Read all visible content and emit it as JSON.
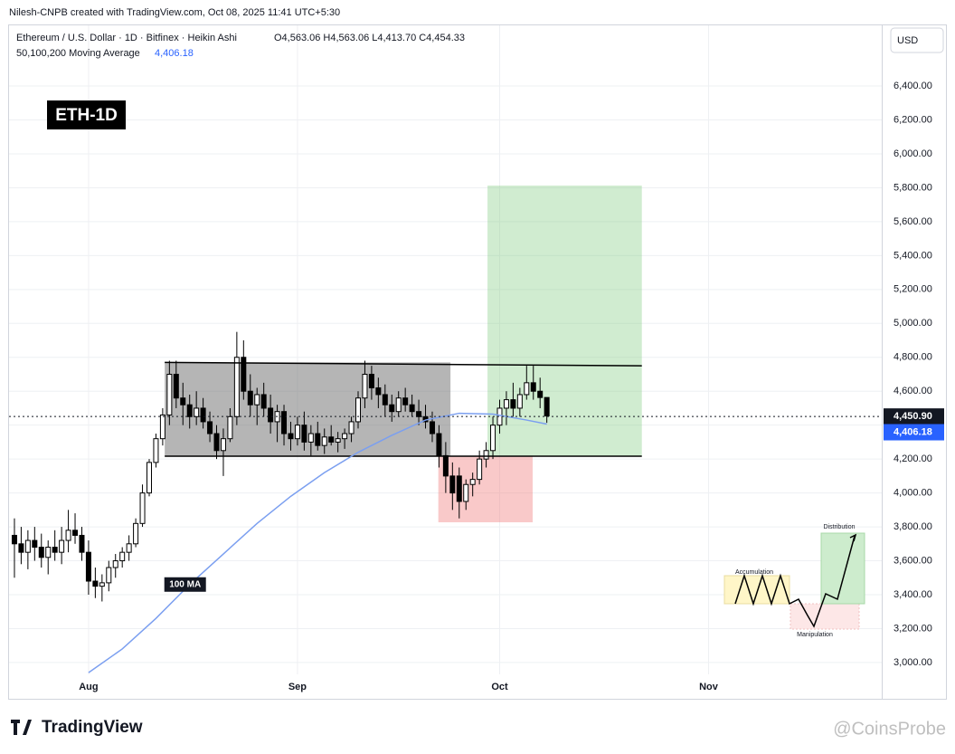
{
  "credit": "Nilesh-CNPB created with TradingView.com, Oct 08, 2025 11:41 UTC+5:30",
  "footer": {
    "logo": "TradingView",
    "watermark": "@CoinsProbe"
  },
  "chart_data": {
    "type": "candlestick",
    "title": "Ethereum / U.S. Dollar · 1D · Bitfinex · Heikin Ashi",
    "ohlc_label": "O4,563.06 H4,563.06 L4,413.70 C4,454.33",
    "indicator_label": "50,100,200 Moving Average",
    "indicator_value": {
      "value": 4406.18,
      "label": "4,406.18"
    },
    "badge": "ETH-1D",
    "currency": "USD",
    "up_color": "#ffffff",
    "down_color": "#000000",
    "x": [
      -11,
      -10,
      -9,
      -8,
      -7,
      -6,
      -5,
      -4,
      -3,
      -2,
      -1,
      0,
      1,
      2,
      3,
      4,
      5,
      6,
      7,
      8,
      9,
      10,
      11,
      12,
      13,
      14,
      15,
      16,
      17,
      18,
      19,
      20,
      21,
      22,
      23,
      24,
      25,
      26,
      27,
      28,
      29,
      30,
      31,
      32,
      33,
      34,
      35,
      36,
      37,
      38,
      39,
      40,
      41,
      42,
      43,
      44,
      45,
      46,
      47,
      48,
      49,
      50,
      51,
      52,
      53,
      54,
      55,
      56,
      57,
      58,
      59,
      60,
      61,
      62,
      63,
      64,
      65,
      66,
      67,
      68
    ],
    "open": [
      3750,
      3700,
      3650,
      3720,
      3680,
      3620,
      3680,
      3650,
      3720,
      3780,
      3750,
      3650,
      3480,
      3450,
      3470,
      3560,
      3600,
      3650,
      3700,
      3820,
      4000,
      4180,
      4320,
      4460,
      4700,
      4560,
      4520,
      4450,
      4500,
      4420,
      4350,
      4250,
      4320,
      4450,
      4800,
      4600,
      4520,
      4580,
      4500,
      4420,
      4480,
      4350,
      4320,
      4400,
      4300,
      4350,
      4280,
      4330,
      4300,
      4320,
      4350,
      4420,
      4560,
      4700,
      4620,
      4580,
      4520,
      4480,
      4560,
      4520,
      4480,
      4450,
      4420,
      4350,
      4220,
      4100,
      4100,
      3950,
      4050,
      4080,
      4200,
      4250,
      4400,
      4500,
      4550,
      4500,
      4580,
      4650,
      4600,
      4563.06
    ],
    "high": [
      3850,
      3800,
      3780,
      3800,
      3760,
      3720,
      3780,
      3800,
      3900,
      3880,
      3800,
      3720,
      3560,
      3520,
      3600,
      3640,
      3680,
      3750,
      3850,
      4050,
      4200,
      4350,
      4500,
      4780,
      4780,
      4650,
      4580,
      4600,
      4560,
      4480,
      4400,
      4380,
      4500,
      4950,
      4900,
      4700,
      4620,
      4650,
      4580,
      4520,
      4520,
      4420,
      4450,
      4480,
      4400,
      4420,
      4380,
      4400,
      4360,
      4380,
      4450,
      4600,
      4780,
      4750,
      4680,
      4640,
      4580,
      4600,
      4620,
      4580,
      4550,
      4520,
      4480,
      4400,
      4300,
      4180,
      4150,
      4080,
      4120,
      4250,
      4300,
      4450,
      4550,
      4600,
      4650,
      4620,
      4750,
      4750,
      4680,
      4563.06
    ],
    "low": [
      3500,
      3580,
      3550,
      3600,
      3560,
      3520,
      3600,
      3580,
      3650,
      3700,
      3600,
      3400,
      3380,
      3360,
      3420,
      3500,
      3560,
      3600,
      3680,
      3800,
      3980,
      4150,
      4280,
      4400,
      4500,
      4400,
      4380,
      4400,
      4380,
      4300,
      4200,
      4100,
      4300,
      4400,
      4550,
      4450,
      4400,
      4450,
      4350,
      4300,
      4280,
      4250,
      4280,
      4250,
      4220,
      4250,
      4230,
      4280,
      4240,
      4260,
      4300,
      4380,
      4500,
      4550,
      4500,
      4450,
      4420,
      4450,
      4480,
      4450,
      4400,
      4380,
      4300,
      4150,
      4000,
      3900,
      3850,
      3900,
      3980,
      4050,
      4150,
      4200,
      4350,
      4400,
      4450,
      4450,
      4550,
      4550,
      4500,
      4413.7
    ],
    "close": [
      3700,
      3650,
      3720,
      3680,
      3620,
      3680,
      3650,
      3720,
      3780,
      3750,
      3650,
      3480,
      3450,
      3470,
      3560,
      3600,
      3650,
      3700,
      3820,
      4000,
      4180,
      4320,
      4460,
      4700,
      4560,
      4520,
      4450,
      4500,
      4420,
      4350,
      4250,
      4320,
      4450,
      4800,
      4600,
      4520,
      4580,
      4500,
      4420,
      4480,
      4350,
      4320,
      4400,
      4300,
      4350,
      4280,
      4330,
      4300,
      4320,
      4350,
      4420,
      4560,
      4700,
      4620,
      4580,
      4520,
      4480,
      4560,
      4520,
      4480,
      4450,
      4420,
      4350,
      4220,
      4100,
      4000,
      3950,
      4050,
      4080,
      4200,
      4250,
      4400,
      4500,
      4550,
      4500,
      4580,
      4650,
      4600,
      4563,
      4454.33
    ],
    "moving_average": {
      "name": "100 MA",
      "color": "#7b9ff0",
      "x": [
        0,
        5,
        10,
        15,
        20,
        25,
        30,
        35,
        40,
        45,
        50,
        55,
        60,
        65,
        68
      ],
      "values": [
        2940,
        3080,
        3260,
        3460,
        3640,
        3820,
        3980,
        4120,
        4240,
        4340,
        4430,
        4470,
        4465,
        4430,
        4406.18
      ]
    },
    "last_price": {
      "value": 4450.9,
      "label": "4,450.90"
    },
    "zones": [
      {
        "x": [
          11.3,
          53.7
        ],
        "y": [
          4217,
          4770
        ],
        "color": "rgba(120,120,120,0.55)"
      },
      {
        "x": [
          59.2,
          82.1
        ],
        "y": [
          4217,
          5813
        ],
        "color": "rgba(120,200,120,0.35)"
      },
      {
        "x": [
          51.9,
          65.9
        ],
        "y": [
          3827,
          4217
        ],
        "color": "rgba(240,120,120,0.4)"
      }
    ],
    "trend_lines": [
      {
        "x": [
          11.3,
          82.1
        ],
        "y": [
          4770,
          4750
        ]
      },
      {
        "x": [
          11.3,
          82.1
        ],
        "y": [
          4217,
          4217
        ]
      }
    ],
    "xlim": [
      -11.8,
      117.7
    ],
    "xticks": [
      {
        "value": 0,
        "label": "Aug"
      },
      {
        "value": 31,
        "label": "Sep"
      },
      {
        "value": 61,
        "label": "Oct"
      },
      {
        "value": 92,
        "label": "Nov"
      }
    ],
    "ylim": [
      2786,
      6758
    ],
    "yticks": [
      {
        "value": 3000,
        "label": "3,000.00"
      },
      {
        "value": 3200,
        "label": "3,200.00"
      },
      {
        "value": 3400,
        "label": "3,400.00"
      },
      {
        "value": 3600,
        "label": "3,600.00"
      },
      {
        "value": 3800,
        "label": "3,800.00"
      },
      {
        "value": 4000,
        "label": "4,000.00"
      },
      {
        "value": 4200,
        "label": "4,200.00"
      },
      {
        "value": 4400,
        "label": "4,400.00"
      },
      {
        "value": 4600,
        "label": "4,600.00"
      },
      {
        "value": 4800,
        "label": "4,800.00"
      },
      {
        "value": 5000,
        "label": "5,000.00"
      },
      {
        "value": 5200,
        "label": "5,200.00"
      },
      {
        "value": 5400,
        "label": "5,400.00"
      },
      {
        "value": 5600,
        "label": "5,600.00"
      },
      {
        "value": 5800,
        "label": "5,800.00"
      },
      {
        "value": 6000,
        "label": "6,000.00"
      },
      {
        "value": 6200,
        "label": "6,200.00"
      },
      {
        "value": 6400,
        "label": "6,400.00"
      }
    ],
    "grid": true,
    "inset": {
      "accumulation": "Accumulation",
      "manipulation": "Manipulation",
      "distribution": "Distribution"
    }
  }
}
